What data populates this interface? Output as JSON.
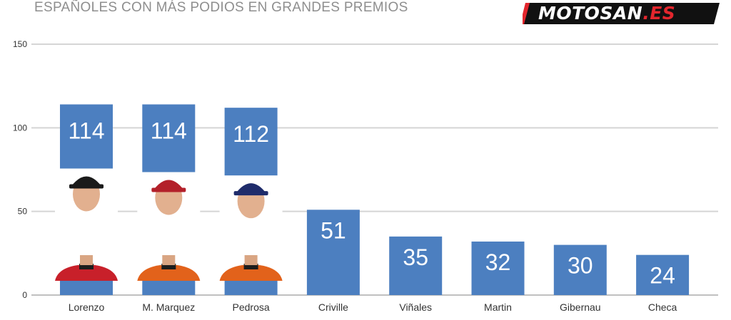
{
  "header": {
    "title": "ESPAÑOLES CON MÁS PODIOS EN GRANDES PREMIOS",
    "logo_main": "MOTOSAN",
    "logo_tld": ".ES"
  },
  "colors": {
    "bar": "#4c7fc0",
    "grid": "#d5d5d5",
    "axis_text": "#333333",
    "title": "#8e8e8e",
    "logo_accent": "#e3262d"
  },
  "chart_data": {
    "type": "bar",
    "title": "ESPAÑOLES CON MÁS PODIOS EN GRANDES PREMIOS",
    "xlabel": "",
    "ylabel": "",
    "ylim": [
      0,
      150
    ],
    "yticks": [
      0,
      50,
      100,
      150
    ],
    "grid": true,
    "legend": "none",
    "categories": [
      "Lorenzo",
      "M. Marquez",
      "Pedrosa",
      "Criville",
      "Viñales",
      "Martin",
      "Gibernau",
      "Checa"
    ],
    "values": [
      114,
      114,
      112,
      51,
      35,
      32,
      30,
      24
    ],
    "rider_photos": [
      "Lorenzo",
      "M. Marquez",
      "Pedrosa"
    ]
  }
}
